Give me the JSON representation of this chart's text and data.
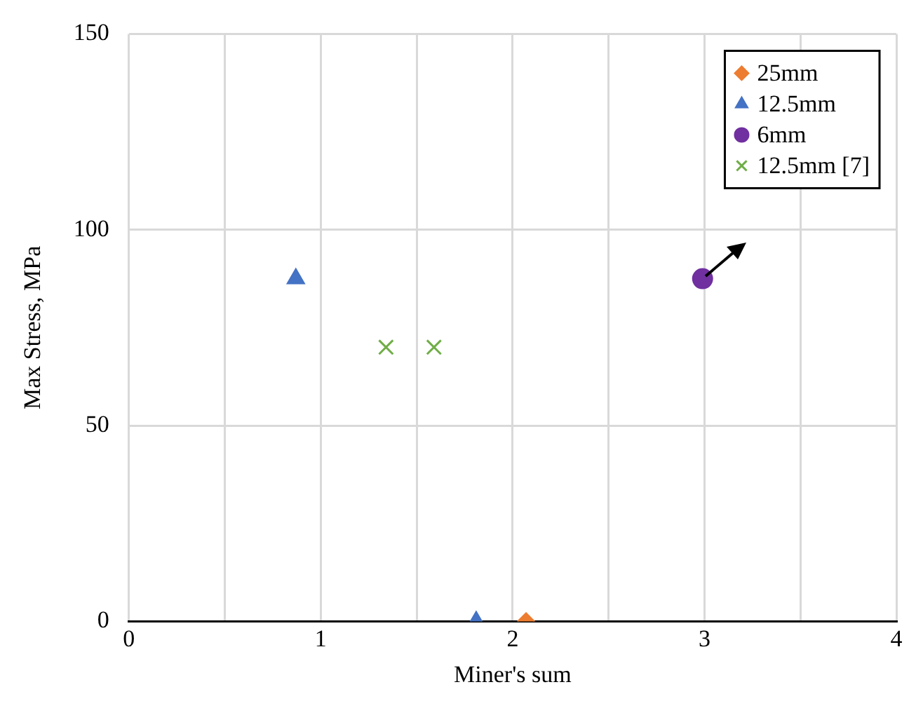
{
  "chart_data": {
    "type": "scatter",
    "xlabel": "Miner's sum",
    "ylabel": "Max Stress, MPa",
    "xlim": [
      0,
      4
    ],
    "xticks": [
      0,
      {
        "value": 0.5,
        "label": null
      },
      1,
      {
        "value": 1.5,
        "label": null
      },
      2,
      {
        "value": 2.5,
        "label": null
      },
      3,
      {
        "value": 3.5,
        "label": null
      },
      4
    ],
    "ylim": [
      0,
      150
    ],
    "yticks": [
      0,
      50,
      100,
      150
    ],
    "grid": true,
    "legend": "top right",
    "series": [
      {
        "name": "25mm",
        "color": "#ed7d31",
        "marker": "diamond",
        "x": [
          2.07
        ],
        "values": [
          0
        ]
      },
      {
        "name": "12.5mm",
        "color": "#4472c4",
        "marker": "triangle",
        "x": [
          0.87,
          1.81
        ],
        "values": [
          87.5,
          0
        ]
      },
      {
        "name": "6mm",
        "color": "#7030a0",
        "marker": "circle",
        "x": [
          2.99
        ],
        "values": [
          87.5
        ]
      },
      {
        "name": "12.5mm [7]",
        "color": "#70ad47",
        "marker": "cross",
        "x": [
          1.34,
          1.59
        ],
        "values": [
          70,
          70
        ]
      }
    ]
  }
}
